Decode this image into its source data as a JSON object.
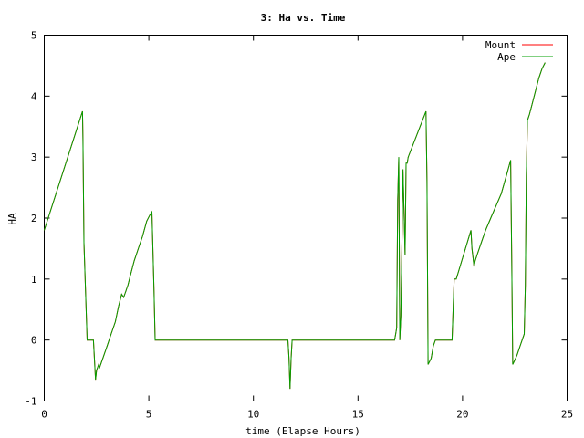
{
  "chart_data": {
    "type": "line",
    "title": "3: Ha vs. Time",
    "xlabel": "time (Elapse Hours)",
    "ylabel": "HA",
    "xlim": [
      0,
      25
    ],
    "ylim": [
      -1,
      5
    ],
    "xticks": [
      0,
      5,
      10,
      15,
      20,
      25
    ],
    "yticks": [
      -1,
      0,
      1,
      2,
      3,
      4,
      5
    ],
    "grid": false,
    "legend_position": "top-right",
    "series": [
      {
        "name": "Mount",
        "color": "#ff0000",
        "x": [
          0.0,
          1.83,
          1.85,
          1.9,
          2.05,
          2.1,
          2.35,
          2.45,
          2.5,
          2.6,
          2.65,
          2.75,
          2.8,
          3.0,
          3.2,
          3.4,
          3.55,
          3.7,
          3.8,
          3.85,
          3.9,
          3.95,
          4.0,
          4.15,
          4.3,
          4.5,
          4.7,
          4.9,
          5.05,
          5.15,
          5.25,
          5.3,
          11.65,
          11.7,
          11.75,
          11.8,
          11.85,
          16.75,
          16.8,
          16.85,
          16.9,
          16.95,
          17.0,
          17.05,
          17.1,
          17.15,
          17.25,
          17.3,
          17.35,
          17.4,
          18.25,
          18.3,
          18.35,
          18.5,
          18.6,
          18.7,
          18.85,
          19.0,
          19.15,
          19.3,
          19.5,
          19.6,
          19.65,
          19.7,
          20.4,
          20.45,
          20.5,
          20.55,
          20.6,
          20.7,
          20.9,
          21.1,
          21.35,
          21.6,
          21.85,
          22.1,
          22.3,
          22.35,
          22.4,
          22.6,
          22.75,
          22.85,
          22.95,
          23.0,
          23.05,
          23.1,
          23.15,
          23.2,
          23.35,
          23.5,
          23.65,
          23.8,
          23.95
        ],
        "y": [
          1.8,
          3.75,
          3.3,
          1.6,
          0.0,
          0.0,
          0.0,
          -0.65,
          -0.5,
          -0.4,
          -0.45,
          -0.35,
          -0.3,
          -0.1,
          0.1,
          0.3,
          0.55,
          0.75,
          0.7,
          0.75,
          0.8,
          0.85,
          0.9,
          1.1,
          1.3,
          1.5,
          1.7,
          1.95,
          2.05,
          2.1,
          0.8,
          0.0,
          0.0,
          -0.3,
          -0.8,
          -0.3,
          0.0,
          0.0,
          0.1,
          0.2,
          2.3,
          3.0,
          0.0,
          0.4,
          1.5,
          2.8,
          1.4,
          2.9,
          2.9,
          3.0,
          3.75,
          2.6,
          -0.4,
          -0.3,
          -0.1,
          0.0,
          0.0,
          0.0,
          0.0,
          0.0,
          0.0,
          1.0,
          1.0,
          1.0,
          1.8,
          1.5,
          1.35,
          1.2,
          1.3,
          1.4,
          1.6,
          1.8,
          2.0,
          2.2,
          2.4,
          2.7,
          2.95,
          1.3,
          -0.4,
          -0.25,
          -0.1,
          0.0,
          0.1,
          0.9,
          2.7,
          3.6,
          3.65,
          3.7,
          3.9,
          4.1,
          4.3,
          4.45,
          4.55
        ]
      },
      {
        "name": "Ape",
        "color": "#00a000",
        "x": [
          0.0,
          1.83,
          1.85,
          1.9,
          2.05,
          2.1,
          2.35,
          2.45,
          2.5,
          2.6,
          2.65,
          2.75,
          2.8,
          3.0,
          3.2,
          3.4,
          3.55,
          3.7,
          3.8,
          3.85,
          3.9,
          3.95,
          4.0,
          4.15,
          4.3,
          4.5,
          4.7,
          4.9,
          5.05,
          5.15,
          5.25,
          5.3,
          11.65,
          11.7,
          11.75,
          11.8,
          11.85,
          16.75,
          16.8,
          16.85,
          16.9,
          16.95,
          17.0,
          17.05,
          17.1,
          17.15,
          17.25,
          17.3,
          17.35,
          17.4,
          18.25,
          18.3,
          18.35,
          18.5,
          18.6,
          18.7,
          18.85,
          19.0,
          19.15,
          19.3,
          19.5,
          19.6,
          19.65,
          19.7,
          20.4,
          20.45,
          20.5,
          20.55,
          20.6,
          20.7,
          20.9,
          21.1,
          21.35,
          21.6,
          21.85,
          22.1,
          22.3,
          22.35,
          22.4,
          22.6,
          22.75,
          22.85,
          22.95,
          23.0,
          23.05,
          23.1,
          23.15,
          23.2,
          23.35,
          23.5,
          23.65,
          23.8,
          23.95
        ],
        "y": [
          1.8,
          3.75,
          3.3,
          1.6,
          0.0,
          0.0,
          0.0,
          -0.65,
          -0.5,
          -0.4,
          -0.45,
          -0.35,
          -0.3,
          -0.1,
          0.1,
          0.3,
          0.55,
          0.75,
          0.7,
          0.75,
          0.8,
          0.85,
          0.9,
          1.1,
          1.3,
          1.5,
          1.7,
          1.95,
          2.05,
          2.1,
          0.8,
          0.0,
          0.0,
          -0.3,
          -0.8,
          -0.3,
          0.0,
          0.0,
          0.1,
          0.2,
          2.3,
          3.0,
          0.0,
          0.4,
          1.5,
          2.8,
          1.4,
          2.9,
          2.9,
          3.0,
          3.75,
          2.6,
          -0.4,
          -0.3,
          -0.1,
          0.0,
          0.0,
          0.0,
          0.0,
          0.0,
          0.0,
          1.0,
          1.0,
          1.0,
          1.8,
          1.5,
          1.35,
          1.2,
          1.3,
          1.4,
          1.6,
          1.8,
          2.0,
          2.2,
          2.4,
          2.7,
          2.95,
          1.3,
          -0.4,
          -0.25,
          -0.1,
          0.0,
          0.1,
          0.9,
          2.7,
          3.6,
          3.65,
          3.7,
          3.9,
          4.1,
          4.3,
          4.45,
          4.55
        ]
      }
    ]
  }
}
